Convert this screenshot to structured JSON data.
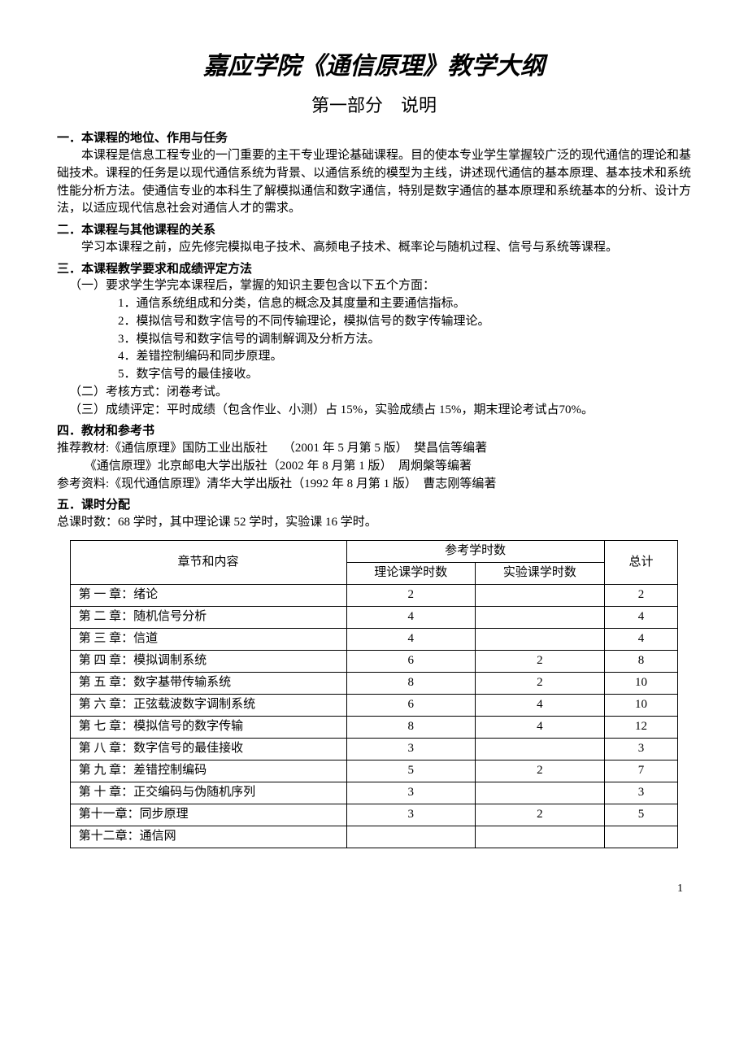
{
  "title": "嘉应学院《通信原理》教学大纲",
  "subtitle": "第一部分　说明",
  "sec1": {
    "heading": "一．本课程的地位、作用与任务",
    "body": "本课程是信息工程专业的一门重要的主干专业理论基础课程。目的使本专业学生掌握较广泛的现代通信的理论和基础技术。课程的任务是以现代通信系统为背景、以通信系统的模型为主线，讲述现代通信的基本原理、基本技术和系统性能分析方法。使通信专业的本科生了解模拟通信和数字通信，特别是数字通信的基本原理和系统基本的分析、设计方法，以适应现代信息社会对通信人才的需求。"
  },
  "sec2": {
    "heading": "二．本课程与其他课程的关系",
    "body": "学习本课程之前，应先修完模拟电子技术、高频电子技术、概率论与随机过程、信号与系统等课程。"
  },
  "sec3": {
    "heading": "三．本课程教学要求和成绩评定方法",
    "lead1": "（一）要求学生学完本课程后，掌握的知识主要包含以下五个方面：",
    "items": [
      "1．通信系统组成和分类，信息的概念及其度量和主要通信指标。",
      "2．模拟信号和数字信号的不同传输理论，模拟信号的数字传输理论。",
      "3．模拟信号和数字信号的调制解调及分析方法。",
      "4．差错控制编码和同步原理。",
      "5．数字信号的最佳接收。"
    ],
    "lead2": "（二）考核方式：闭卷考试。",
    "lead3": "（三）成绩评定：平时成绩（包含作业、小测）占 15%，实验成绩占 15%，期末理论考试占70%。"
  },
  "sec4": {
    "heading": "四．教材和参考书",
    "lines": [
      "推荐教材:《通信原理》国防工业出版社     （2001 年 5 月第 5 版）  樊昌信等编著",
      "         《通信原理》北京邮电大学出版社（2002 年 8 月第 1 版）  周炯槃等编著",
      "参考资料:《现代通信原理》清华大学出版社（1992 年 8 月第 1 版）  曹志刚等编著"
    ]
  },
  "sec5": {
    "heading": "五．课时分配",
    "summary": "总课时数：68 学时，其中理论课 52 学时，实验课 16 学时。"
  },
  "table": {
    "header": {
      "col_chapter": "章节和内容",
      "col_ref": "参考学时数",
      "col_theory": "理论课学时数",
      "col_lab": "实验课学时数",
      "col_total": "总计"
    },
    "rows": [
      {
        "chapter": "第 一 章：绪论",
        "theory": "2",
        "lab": "",
        "total": "2"
      },
      {
        "chapter": "第 二 章：随机信号分析",
        "theory": "4",
        "lab": "",
        "total": "4"
      },
      {
        "chapter": "第 三 章：信道",
        "theory": "4",
        "lab": "",
        "total": "4"
      },
      {
        "chapter": "第 四 章：模拟调制系统",
        "theory": "6",
        "lab": "2",
        "total": "8"
      },
      {
        "chapter": "第 五 章：数字基带传输系统",
        "theory": "8",
        "lab": "2",
        "total": "10"
      },
      {
        "chapter": "第 六 章：正弦载波数字调制系统",
        "theory": "6",
        "lab": "4",
        "total": "10"
      },
      {
        "chapter": "第 七 章：模拟信号的数字传输",
        "theory": "8",
        "lab": "4",
        "total": "12"
      },
      {
        "chapter": "第 八 章：数字信号的最佳接收",
        "theory": "3",
        "lab": "",
        "total": "3"
      },
      {
        "chapter": "第 九 章：差错控制编码",
        "theory": "5",
        "lab": "2",
        "total": "7"
      },
      {
        "chapter": "第 十 章：正交编码与伪随机序列",
        "theory": "3",
        "lab": "",
        "total": "3"
      },
      {
        "chapter": "第十一章：同步原理",
        "theory": "3",
        "lab": "2",
        "total": "5"
      },
      {
        "chapter": "第十二章：通信网",
        "theory": "",
        "lab": "",
        "total": ""
      }
    ]
  },
  "page_number": "1"
}
